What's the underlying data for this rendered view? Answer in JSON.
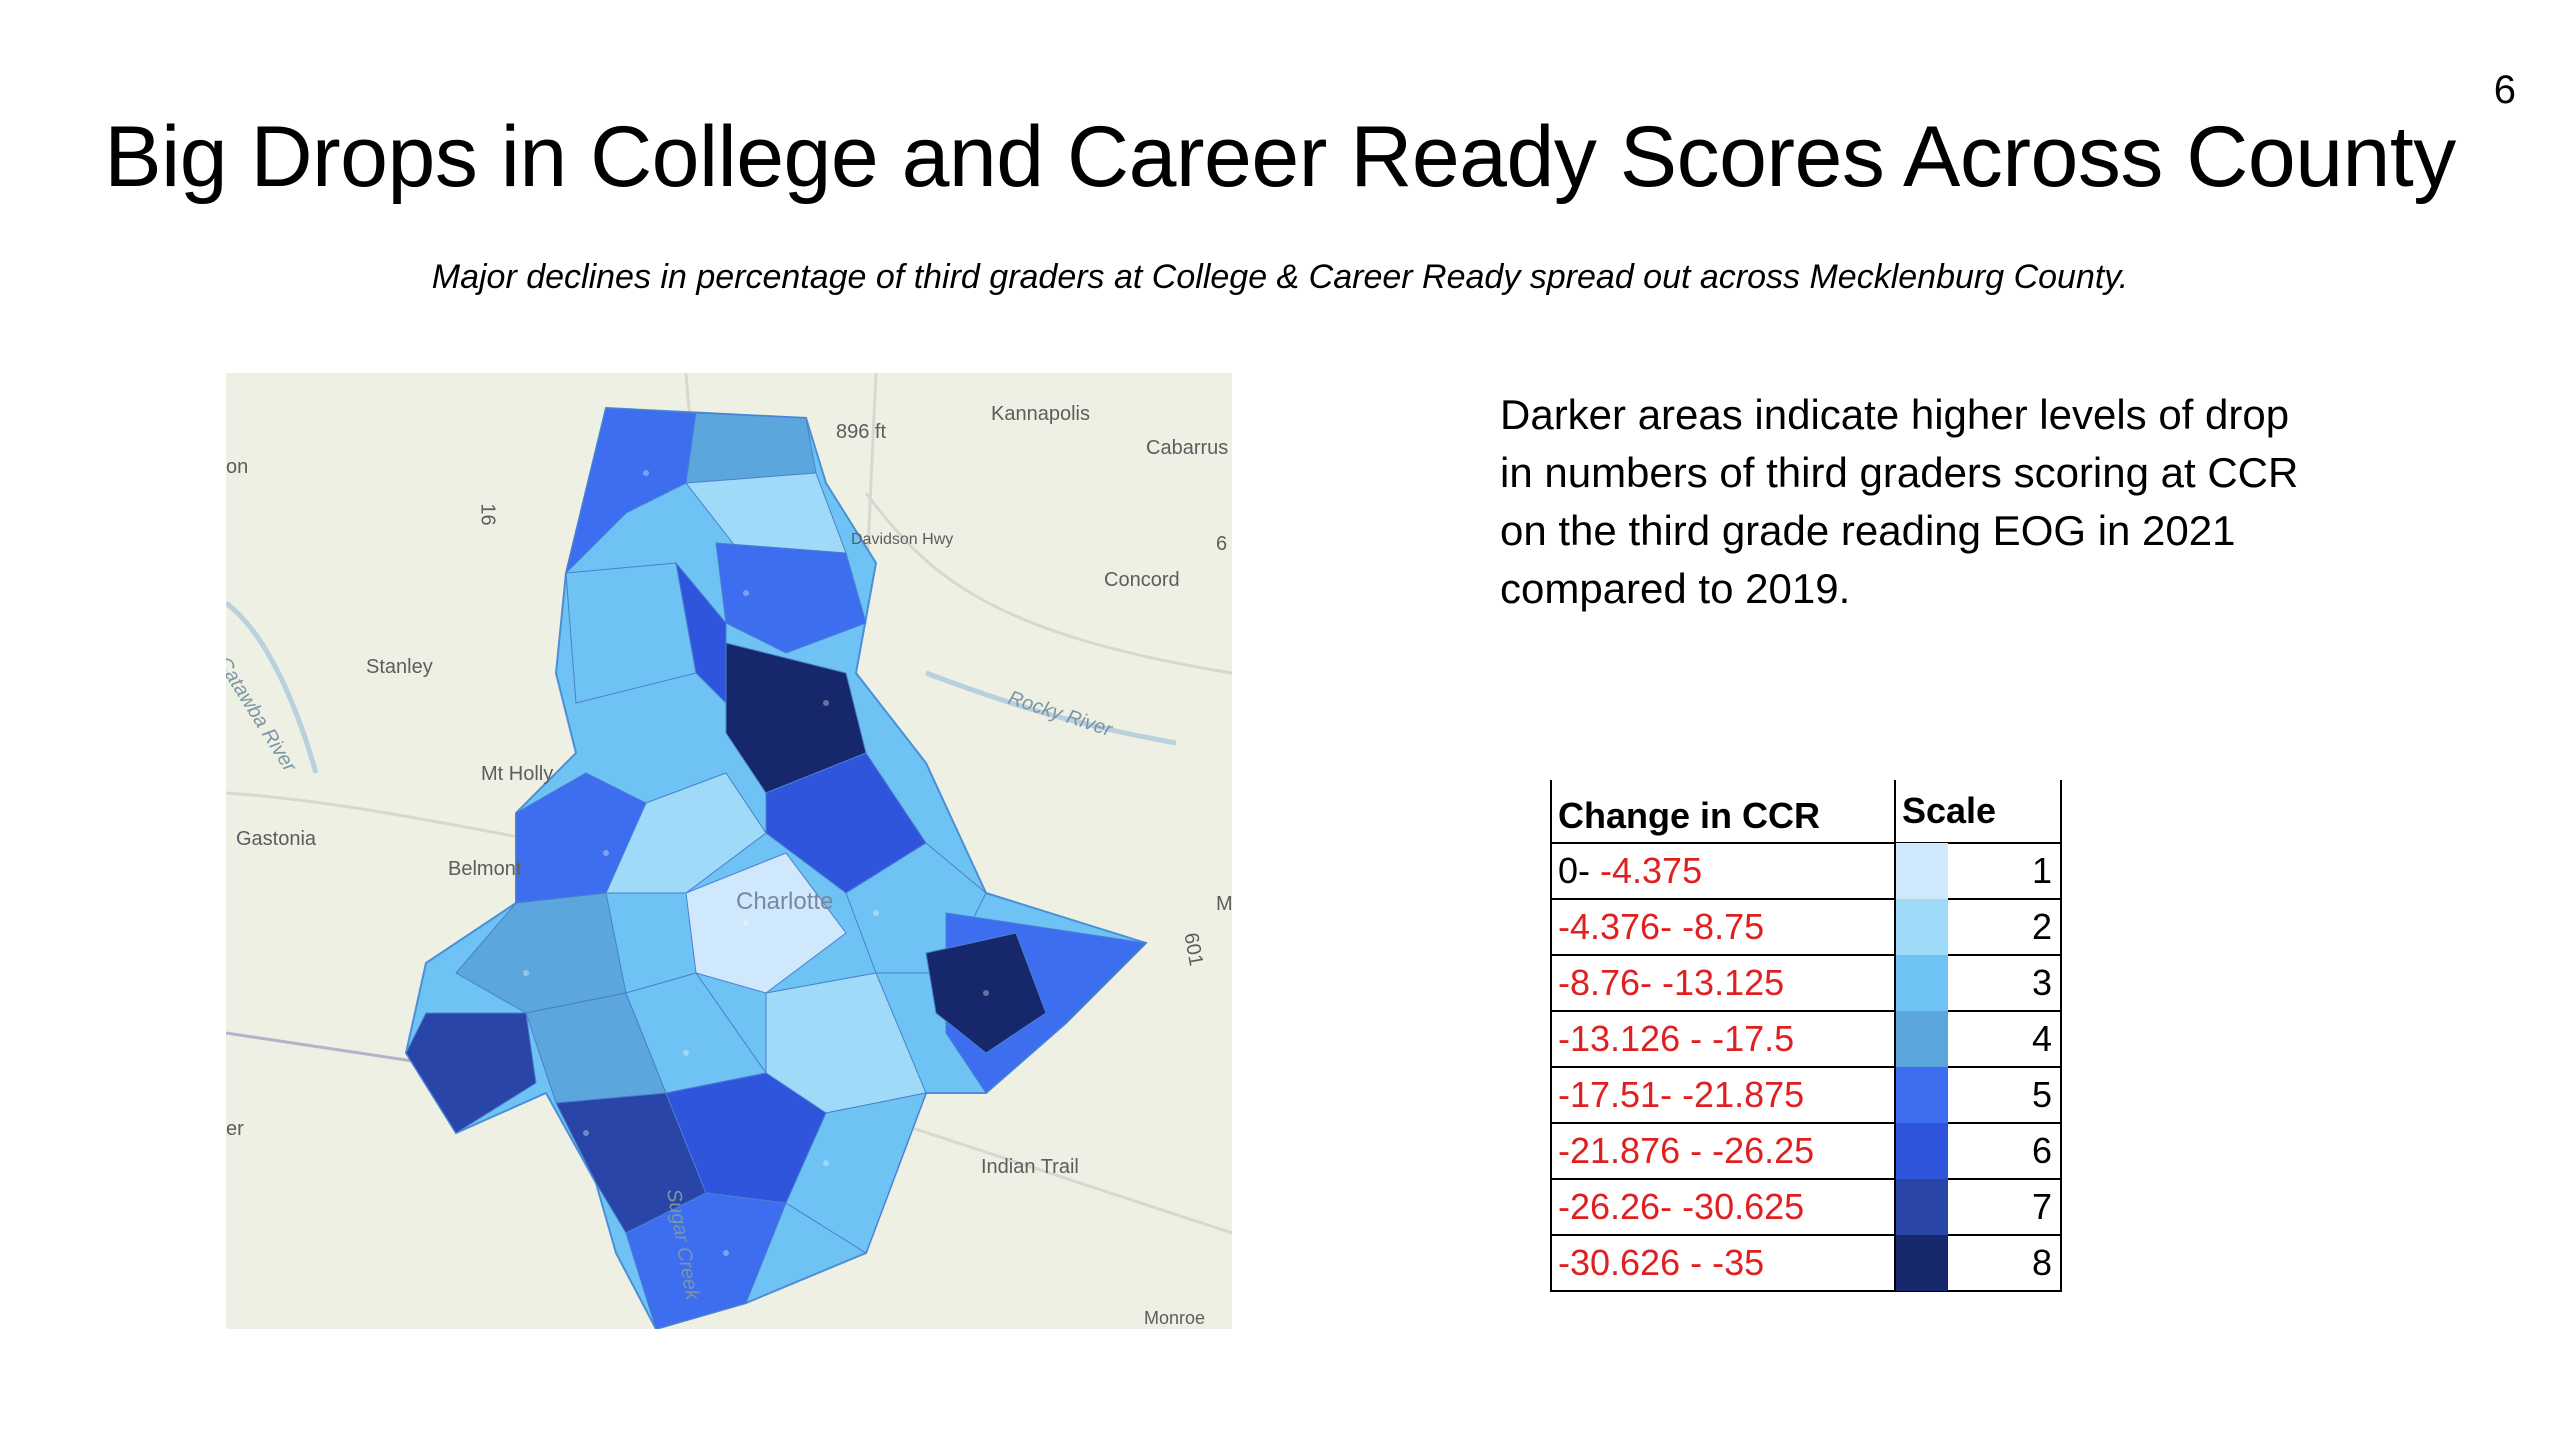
{
  "page_number": "6",
  "title": "Big Drops in College and Career Ready Scores Across County",
  "subtitle": "Major declines in percentage of third graders at College & Career Ready spread out across Mecklenburg County.",
  "description": "Darker areas indicate higher levels of drop in numbers of third graders scoring at CCR on the third grade reading EOG in 2021 compared to 2019.",
  "map": {
    "labels": {
      "kannapolis": "Kannapolis",
      "cabarrus": "Cabarrus",
      "elev": "896 ft",
      "davidson_hwy": "Davidson Hwy",
      "concord": "Concord",
      "stanley": "Stanley",
      "catawba_river": "Catawba River",
      "rocky_river": "Rocky River",
      "mt_holly": "Mt Holly",
      "gastonia": "Gastonia",
      "belmont": "Belmont",
      "charlotte": "Charlotte",
      "indian_trail": "Indian Trail",
      "monroe": "Monroe",
      "sugar_creek": "Sugar Creek",
      "route_16": "16",
      "route_601": "601",
      "m": "M",
      "on": "on",
      "er": "er",
      "six": "6"
    }
  },
  "legend": {
    "header_range": "Change in CCR",
    "header_scale": "Scale",
    "rows": [
      {
        "prefix": "0- ",
        "range": "-4.375",
        "scale": "1",
        "color": "#cfe8fb"
      },
      {
        "prefix": "",
        "range": "-4.376- -8.75",
        "scale": "2",
        "color": "#9fdaf8"
      },
      {
        "prefix": "",
        "range": "-8.76- -13.125",
        "scale": "3",
        "color": "#6ec3f4"
      },
      {
        "prefix": "",
        "range": "-13.126 - -17.5",
        "scale": "4",
        "color": "#5aa6dd"
      },
      {
        "prefix": "",
        "range": "-17.51- -21.875",
        "scale": "5",
        "color": "#3d6ef0"
      },
      {
        "prefix": "",
        "range": "-21.876 - -26.25",
        "scale": "6",
        "color": "#2f55dc"
      },
      {
        "prefix": "",
        "range": "-26.26- -30.625",
        "scale": "7",
        "color": "#2945a8"
      },
      {
        "prefix": "",
        "range": "-30.626 - -35",
        "scale": "8",
        "color": "#17276c"
      }
    ]
  }
}
